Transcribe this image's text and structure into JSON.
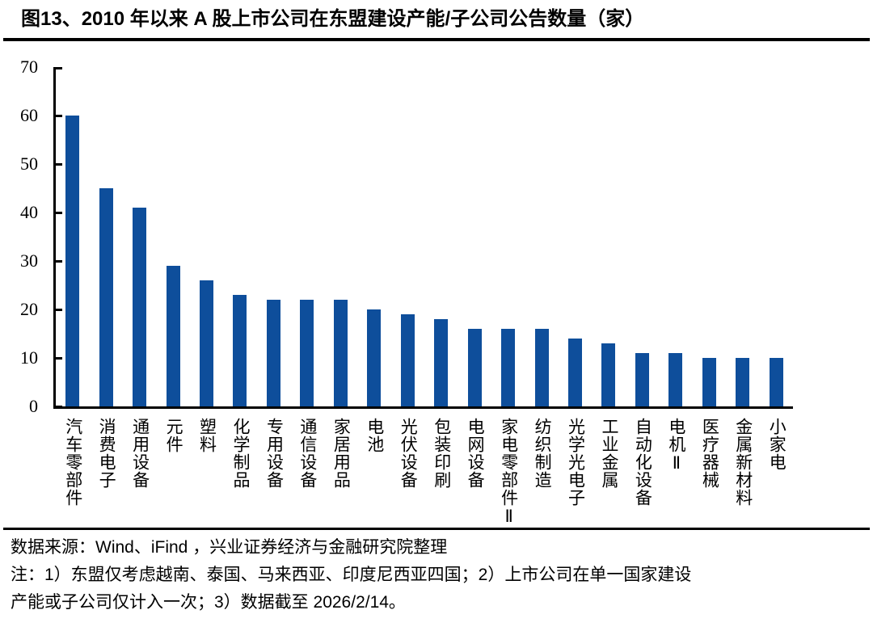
{
  "title": "图13、2010 年以来 A 股上市公司在东盟建设产能/子公司公告数量（家）",
  "chart_data": {
    "type": "bar",
    "title": "2010 年以来 A 股上市公司在东盟建设产能/子公司公告数量（家）",
    "categories": [
      "汽车零部件",
      "消费电子",
      "通用设备",
      "元件",
      "塑料",
      "化学制品",
      "专用设备",
      "通信设备",
      "家居用品",
      "电池",
      "光伏设备",
      "包装印刷",
      "电网设备",
      "家电零部件Ⅱ",
      "纺织制造",
      "光学光电子",
      "工业金属",
      "自动化设备",
      "电机Ⅱ",
      "医疗器械",
      "金属新材料",
      "小家电"
    ],
    "values": [
      60,
      45,
      41,
      29,
      26,
      23,
      22,
      22,
      22,
      20,
      19,
      18,
      16,
      16,
      16,
      14,
      13,
      11,
      11,
      10,
      10,
      10
    ],
    "xlabel": "",
    "ylabel": "",
    "ylim": [
      0,
      70
    ],
    "yticks": [
      0,
      10,
      20,
      30,
      40,
      50,
      60,
      70
    ],
    "grid": false,
    "legend_position": "none"
  },
  "colors": {
    "bar": "#0E4E9B",
    "axis": "#000000",
    "text": "#000000"
  },
  "footer": {
    "source_line": "数据来源：Wind、iFind ，兴业证券经济与金融研究院整理",
    "note_line1": "注：1）东盟仅考虑越南、泰国、马来西亚、印度尼西亚四国；2）上市公司在单一国家建设",
    "note_line2": "产能或子公司仅计入一次；3）数据截至 2026/2/14。"
  }
}
